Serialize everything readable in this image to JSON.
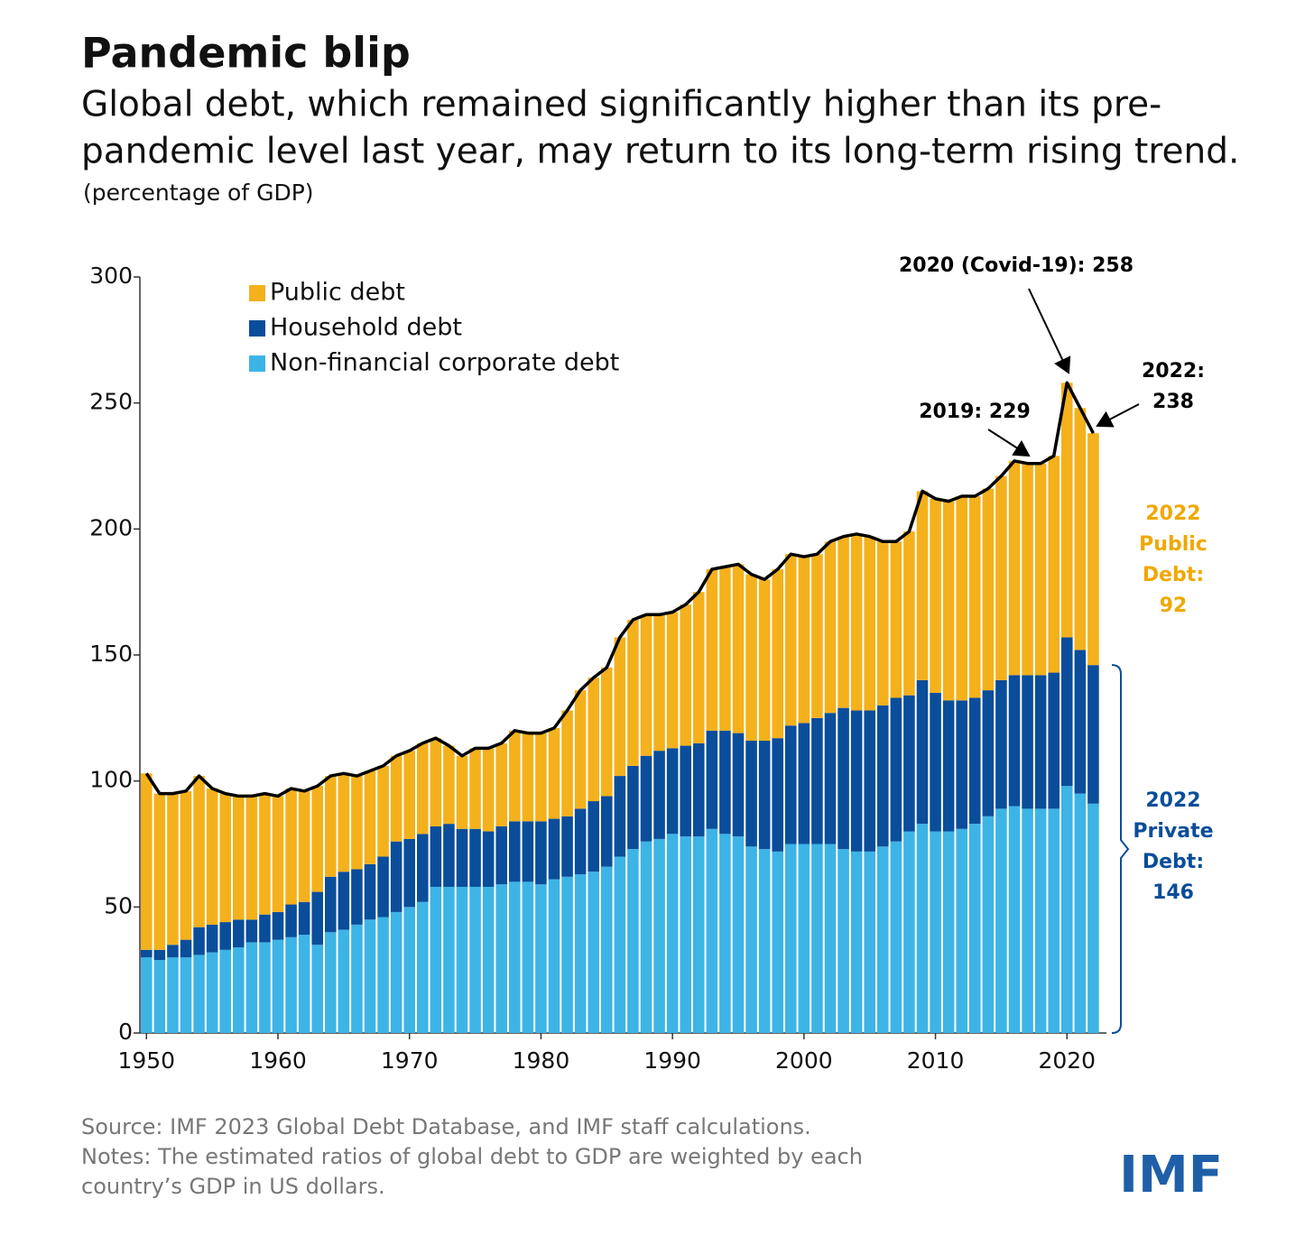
{
  "chart_data": {
    "type": "bar",
    "stacked": true,
    "title": "Pandemic blip",
    "subtitle": [
      "Global debt, which remained significantly higher than its pre-",
      "pandemic level last year, may return to its long-term rising trend."
    ],
    "y_label": "(percentage of GDP)",
    "x": [
      1950,
      1951,
      1952,
      1953,
      1954,
      1955,
      1956,
      1957,
      1958,
      1959,
      1960,
      1961,
      1962,
      1963,
      1964,
      1965,
      1966,
      1967,
      1968,
      1969,
      1970,
      1971,
      1972,
      1973,
      1974,
      1975,
      1976,
      1977,
      1978,
      1979,
      1980,
      1981,
      1982,
      1983,
      1984,
      1985,
      1986,
      1987,
      1988,
      1989,
      1990,
      1991,
      1992,
      1993,
      1994,
      1995,
      1996,
      1997,
      1998,
      1999,
      2000,
      2001,
      2002,
      2003,
      2004,
      2005,
      2006,
      2007,
      2008,
      2009,
      2010,
      2011,
      2012,
      2013,
      2014,
      2015,
      2016,
      2017,
      2018,
      2019,
      2020,
      2021,
      2022
    ],
    "series": [
      {
        "name": "Non-financial corporate debt",
        "color": "#3db4e6",
        "values": [
          30,
          29,
          30,
          30,
          31,
          32,
          33,
          34,
          36,
          36,
          37,
          38,
          39,
          35,
          40,
          41,
          43,
          45,
          46,
          48,
          50,
          52,
          58,
          58,
          58,
          58,
          58,
          59,
          60,
          60,
          59,
          61,
          62,
          63,
          64,
          66,
          70,
          73,
          76,
          77,
          79,
          78,
          78,
          81,
          79,
          78,
          74,
          73,
          72,
          75,
          75,
          75,
          75,
          73,
          72,
          72,
          74,
          76,
          80,
          83,
          80,
          80,
          81,
          83,
          86,
          89,
          90,
          89,
          89,
          89,
          98,
          95,
          91
        ]
      },
      {
        "name": "Household debt",
        "color": "#0a4d9a",
        "values": [
          3,
          4,
          5,
          7,
          11,
          11,
          11,
          11,
          9,
          11,
          11,
          13,
          13,
          21,
          22,
          23,
          22,
          22,
          24,
          28,
          27,
          27,
          24,
          25,
          23,
          23,
          22,
          23,
          24,
          24,
          25,
          24,
          24,
          26,
          28,
          28,
          32,
          33,
          34,
          35,
          34,
          36,
          37,
          39,
          41,
          41,
          42,
          43,
          45,
          47,
          48,
          50,
          52,
          56,
          56,
          56,
          56,
          57,
          54,
          57,
          55,
          52,
          51,
          50,
          50,
          51,
          52,
          53,
          53,
          54,
          59,
          57,
          55
        ]
      },
      {
        "name": "Public debt",
        "color": "#f4b11c",
        "values": [
          70,
          62,
          60,
          59,
          60,
          54,
          51,
          49,
          49,
          48,
          46,
          46,
          44,
          42,
          40,
          39,
          37,
          37,
          36,
          34,
          35,
          36,
          35,
          31,
          29,
          32,
          33,
          33,
          36,
          35,
          35,
          36,
          42,
          47,
          49,
          51,
          55,
          58,
          56,
          54,
          54,
          56,
          60,
          64,
          65,
          67,
          66,
          64,
          67,
          68,
          66,
          65,
          68,
          68,
          70,
          69,
          65,
          62,
          65,
          75,
          77,
          79,
          81,
          80,
          80,
          81,
          85,
          84,
          84,
          86,
          101,
          96,
          92
        ]
      }
    ],
    "xlim": [
      1949.5,
      2023
    ],
    "xticks": [
      1950,
      1960,
      1970,
      1980,
      1990,
      2000,
      2010,
      2020
    ],
    "ylim": [
      0,
      300
    ],
    "yticks": [
      0,
      50,
      100,
      150,
      200,
      250,
      300
    ],
    "legend": "top-left",
    "total_line_color": "#000000",
    "annotations": [
      {
        "lines": [
          "2020 (Covid-19): 258"
        ],
        "color": "#000000"
      },
      {
        "lines": [
          "2019: 229"
        ],
        "color": "#000000"
      },
      {
        "lines": [
          "2022:",
          "238"
        ],
        "color": "#000000"
      },
      {
        "lines": [
          "2022",
          "Public",
          "Debt:",
          "92"
        ],
        "color": "#f0a800"
      },
      {
        "lines": [
          "2022",
          "Private",
          "Debt:",
          "146"
        ],
        "color": "#0a4d9a"
      }
    ],
    "source": [
      "Source: IMF 2023 Global Debt Database, and IMF staff calculations.",
      "Notes: The estimated ratios of global debt to GDP are weighted by each",
      "country’s GDP in US dollars."
    ],
    "logo": "IMF"
  }
}
